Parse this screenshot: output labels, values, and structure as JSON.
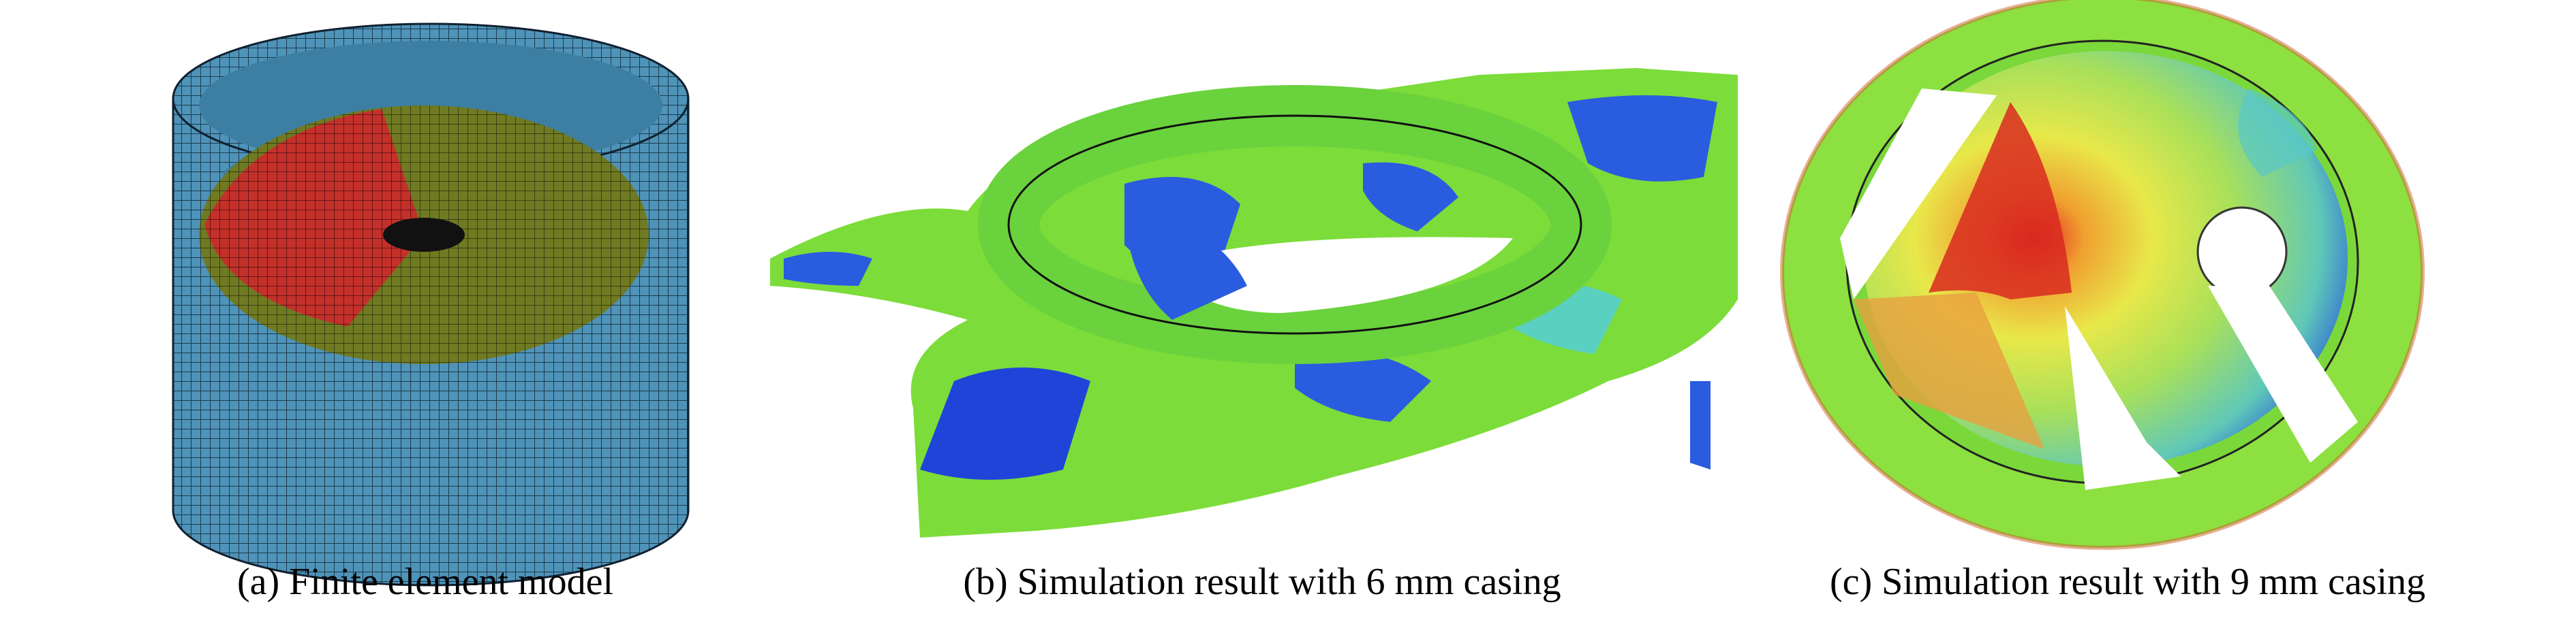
{
  "captions": [
    "(a) Finite element model",
    "(b) Simulation result with 6 mm casing",
    "(c) Simulation result with 9 mm casing"
  ]
}
